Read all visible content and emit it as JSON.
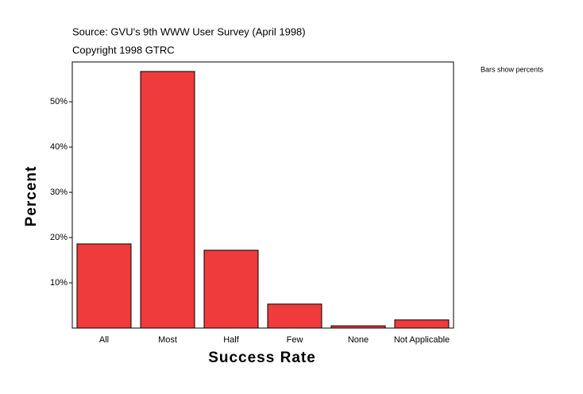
{
  "chart_data": {
    "type": "bar",
    "source": "Source: GVU's 9th WWW User Survey (April 1998)",
    "copyright": "Copyright 1998 GTRC",
    "note": "Bars show percents",
    "x_label": "Success Rate",
    "y_label": "Percent",
    "categories": [
      "All",
      "Most",
      "Half",
      "Few",
      "None",
      "Not Applicable"
    ],
    "values": [
      18.6,
      56.7,
      17.2,
      5.3,
      0.5,
      1.8
    ],
    "color": "#ef3b3b",
    "ylim": [
      0,
      58.8
    ],
    "yticks": [
      {
        "value": 10,
        "label": "10%"
      },
      {
        "value": 20,
        "label": "20%"
      },
      {
        "value": 30,
        "label": "30%"
      },
      {
        "value": 40,
        "label": "40%"
      },
      {
        "value": 50,
        "label": "50%"
      }
    ]
  }
}
